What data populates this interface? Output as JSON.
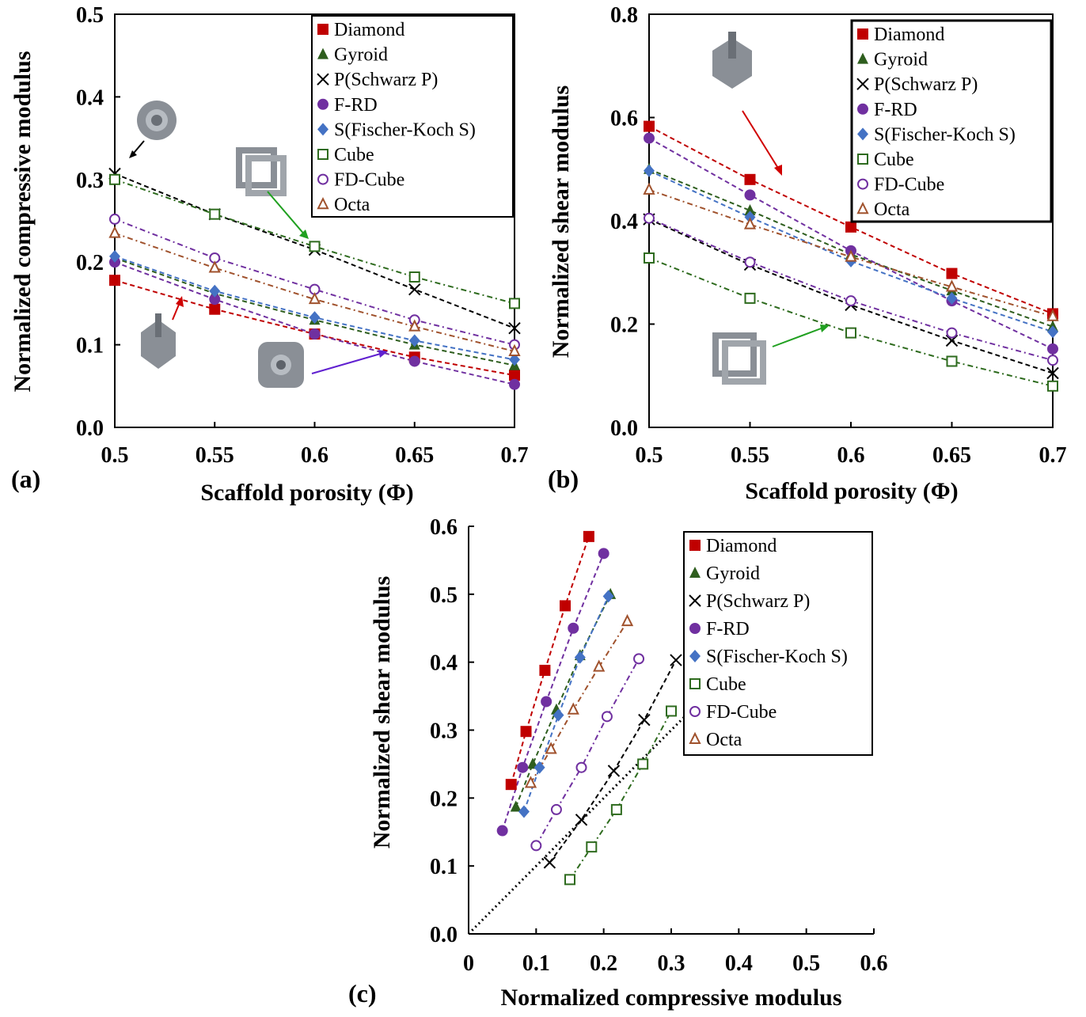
{
  "figure": {
    "panels": [
      {
        "letter": "(a)",
        "xlabel": "Scaffold porosity (Φ)",
        "ylabel": "Normalized compressive modulus"
      },
      {
        "letter": "(b)",
        "xlabel": "Scaffold porosity (Φ)",
        "ylabel": "Normalized shear modulus"
      },
      {
        "letter": "(c)",
        "xlabel": "Normalized compressive modulus",
        "ylabel": "Normalized shear modulus"
      }
    ]
  },
  "chart_data": [
    {
      "type": "line",
      "panel": "(a)",
      "title": "",
      "xlabel": "Scaffold porosity (Φ)",
      "ylabel": "Normalized compressive modulus",
      "xlim": [
        0.5,
        0.7
      ],
      "ylim": [
        0.0,
        0.5
      ],
      "xticks": [
        0.5,
        0.55,
        0.6,
        0.65,
        0.7
      ],
      "xtick_labels": [
        "0.5",
        "0.55",
        "0.6",
        "0.65",
        "0.7"
      ],
      "yticks": [
        0.0,
        0.1,
        0.2,
        0.3,
        0.4,
        0.5
      ],
      "ytick_labels": [
        "0.0",
        "0.1",
        "0.2",
        "0.3",
        "0.4",
        "0.5"
      ],
      "grid": false,
      "legend_position": "top-right",
      "x": [
        0.5,
        0.55,
        0.6,
        0.65,
        0.7
      ],
      "series": [
        {
          "name": "Diamond",
          "marker": "square-filled",
          "color": "#c00000",
          "values": [
            0.178,
            0.143,
            0.113,
            0.085,
            0.063
          ]
        },
        {
          "name": "Gyroid",
          "marker": "triangle-filled",
          "color": "#2e5e1e",
          "values": [
            0.205,
            0.162,
            0.13,
            0.1,
            0.075
          ]
        },
        {
          "name": "P(Schwarz P)",
          "marker": "x",
          "color": "#000000",
          "values": [
            0.307,
            0.258,
            0.215,
            0.167,
            0.12
          ]
        },
        {
          "name": "F-RD",
          "marker": "circle-filled",
          "color": "#7030a0",
          "values": [
            0.2,
            0.155,
            0.113,
            0.08,
            0.052
          ]
        },
        {
          "name": "S(Fischer-Koch S)",
          "marker": "diamond-filled",
          "color": "#4472c4",
          "values": [
            0.207,
            0.165,
            0.133,
            0.105,
            0.082
          ]
        },
        {
          "name": "Cube",
          "marker": "square-open",
          "color": "#2e6b1e",
          "values": [
            0.3,
            0.258,
            0.219,
            0.182,
            0.15
          ]
        },
        {
          "name": "FD-Cube",
          "marker": "circle-open",
          "color": "#7030a0",
          "values": [
            0.252,
            0.205,
            0.167,
            0.13,
            0.1
          ]
        },
        {
          "name": "Octa",
          "marker": "triangle-open",
          "color": "#a0522d",
          "values": [
            0.235,
            0.193,
            0.155,
            0.122,
            0.092
          ]
        }
      ]
    },
    {
      "type": "line",
      "panel": "(b)",
      "title": "",
      "xlabel": "Scaffold porosity (Φ)",
      "ylabel": "Normalized shear modulus",
      "xlim": [
        0.5,
        0.7
      ],
      "ylim": [
        0.0,
        0.8
      ],
      "xticks": [
        0.5,
        0.55,
        0.6,
        0.65,
        0.7
      ],
      "xtick_labels": [
        "0.5",
        "0.55",
        "0.6",
        "0.65",
        "0.7"
      ],
      "yticks": [
        0.0,
        0.2,
        0.4,
        0.6,
        0.8
      ],
      "ytick_labels": [
        "0.0",
        "0.2",
        "0.4",
        "0.6",
        "0.8"
      ],
      "grid": false,
      "legend_position": "top-right",
      "x": [
        0.5,
        0.55,
        0.6,
        0.65,
        0.7
      ],
      "series": [
        {
          "name": "Diamond",
          "marker": "square-filled",
          "color": "#c00000",
          "values": [
            0.583,
            0.48,
            0.388,
            0.298,
            0.22
          ]
        },
        {
          "name": "Gyroid",
          "marker": "triangle-filled",
          "color": "#2e5e1e",
          "values": [
            0.5,
            0.42,
            0.335,
            0.265,
            0.195
          ]
        },
        {
          "name": "P(Schwarz P)",
          "marker": "x",
          "color": "#000000",
          "values": [
            0.403,
            0.315,
            0.237,
            0.168,
            0.105
          ]
        },
        {
          "name": "F-RD",
          "marker": "circle-filled",
          "color": "#7030a0",
          "values": [
            0.56,
            0.45,
            0.342,
            0.245,
            0.152
          ]
        },
        {
          "name": "S(Fischer-Koch S)",
          "marker": "diamond-filled",
          "color": "#4472c4",
          "values": [
            0.497,
            0.407,
            0.322,
            0.25,
            0.185
          ]
        },
        {
          "name": "Cube",
          "marker": "square-open",
          "color": "#2e6b1e",
          "values": [
            0.328,
            0.25,
            0.183,
            0.128,
            0.08
          ]
        },
        {
          "name": "FD-Cube",
          "marker": "circle-open",
          "color": "#7030a0",
          "values": [
            0.405,
            0.32,
            0.245,
            0.183,
            0.13
          ]
        },
        {
          "name": "Octa",
          "marker": "triangle-open",
          "color": "#a0522d",
          "values": [
            0.46,
            0.393,
            0.33,
            0.272,
            0.215
          ]
        }
      ]
    },
    {
      "type": "scatter",
      "panel": "(c)",
      "title": "",
      "xlabel": "Normalized compressive modulus",
      "ylabel": "Normalized shear modulus",
      "xlim": [
        0.0,
        0.6
      ],
      "ylim": [
        0.0,
        0.6
      ],
      "xticks": [
        0.0,
        0.1,
        0.2,
        0.3,
        0.4,
        0.5,
        0.6
      ],
      "xtick_labels": [
        "0",
        "0.1",
        "0.2",
        "0.3",
        "0.4",
        "0.5",
        "0.6"
      ],
      "yticks": [
        0.0,
        0.1,
        0.2,
        0.3,
        0.4,
        0.5,
        0.6
      ],
      "ytick_labels": [
        "0.0",
        "0.1",
        "0.2",
        "0.3",
        "0.4",
        "0.5",
        "0.6"
      ],
      "grid": false,
      "legend_position": "top-right",
      "reference_line": {
        "style": "dotted",
        "color": "#000000",
        "points": [
          [
            0.0,
            0.0
          ],
          [
            0.34,
            0.34
          ]
        ]
      },
      "series": [
        {
          "name": "Diamond",
          "marker": "square-filled",
          "color": "#c00000",
          "x": [
            0.063,
            0.085,
            0.113,
            0.143,
            0.178
          ],
          "y": [
            0.22,
            0.298,
            0.388,
            0.483,
            0.585
          ]
        },
        {
          "name": "Gyroid",
          "marker": "triangle-filled",
          "color": "#2e5e1e",
          "x": [
            0.07,
            0.095,
            0.13,
            0.165,
            0.21
          ],
          "y": [
            0.187,
            0.25,
            0.33,
            0.41,
            0.5
          ]
        },
        {
          "name": "P(Schwarz P)",
          "marker": "x",
          "color": "#000000",
          "x": [
            0.12,
            0.167,
            0.215,
            0.26,
            0.307
          ],
          "y": [
            0.105,
            0.168,
            0.24,
            0.315,
            0.403
          ]
        },
        {
          "name": "F-RD",
          "marker": "circle-filled",
          "color": "#7030a0",
          "x": [
            0.05,
            0.08,
            0.115,
            0.155,
            0.2
          ],
          "y": [
            0.152,
            0.245,
            0.342,
            0.45,
            0.56
          ]
        },
        {
          "name": "S(Fischer-Koch S)",
          "marker": "diamond-filled",
          "color": "#4472c4",
          "x": [
            0.082,
            0.105,
            0.133,
            0.165,
            0.207
          ],
          "y": [
            0.18,
            0.245,
            0.322,
            0.407,
            0.497
          ]
        },
        {
          "name": "Cube",
          "marker": "square-open",
          "color": "#2e6b1e",
          "x": [
            0.15,
            0.182,
            0.219,
            0.258,
            0.3
          ],
          "y": [
            0.08,
            0.128,
            0.183,
            0.25,
            0.328
          ]
        },
        {
          "name": "FD-Cube",
          "marker": "circle-open",
          "color": "#7030a0",
          "x": [
            0.1,
            0.13,
            0.167,
            0.205,
            0.252
          ],
          "y": [
            0.13,
            0.183,
            0.245,
            0.32,
            0.405
          ]
        },
        {
          "name": "Octa",
          "marker": "triangle-open",
          "color": "#a0522d",
          "x": [
            0.092,
            0.122,
            0.155,
            0.193,
            0.235
          ],
          "y": [
            0.222,
            0.272,
            0.33,
            0.393,
            0.46
          ]
        }
      ]
    }
  ]
}
